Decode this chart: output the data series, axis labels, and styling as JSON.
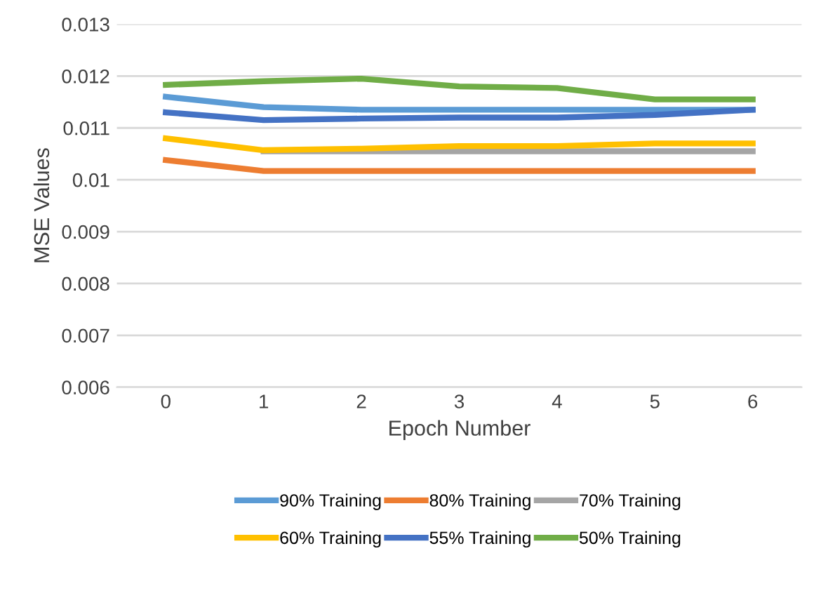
{
  "chart_data": {
    "type": "line",
    "xlabel": "Epoch Number",
    "ylabel": "MSE Values",
    "categories": [
      "0",
      "1",
      "2",
      "3",
      "4",
      "5",
      "6"
    ],
    "ylim": [
      0.006,
      0.013
    ],
    "yticks": [
      0.006,
      0.007,
      0.008,
      0.009,
      0.01,
      0.011,
      0.012,
      0.013
    ],
    "grid": "y",
    "legend": "bottom",
    "marker": "none",
    "line_style": "solid",
    "series": [
      {
        "name": "90% Training",
        "color": "#5b9bd5",
        "values": [
          0.0116,
          0.0114,
          0.01135,
          0.01135,
          0.01135,
          0.01135,
          0.01135
        ]
      },
      {
        "name": "80% Training",
        "color": "#ed7d31",
        "values": [
          0.01038,
          0.01017,
          0.01017,
          0.01017,
          0.01017,
          0.01017,
          0.01017
        ]
      },
      {
        "name": "70% Training",
        "color": "#a5a5a5",
        "values": [
          null,
          0.01055,
          0.01055,
          0.01055,
          0.01055,
          0.01055,
          0.01055
        ]
      },
      {
        "name": "60% Training",
        "color": "#ffc000",
        "values": [
          0.0108,
          0.01057,
          0.0106,
          0.01065,
          0.01065,
          0.0107,
          0.0107
        ]
      },
      {
        "name": "55% Training",
        "color": "#4472c4",
        "values": [
          0.0113,
          0.01115,
          0.01118,
          0.0112,
          0.0112,
          0.01125,
          0.01135
        ]
      },
      {
        "name": "50% Training",
        "color": "#70ad47",
        "values": [
          0.01183,
          0.0119,
          0.01195,
          0.0118,
          0.01177,
          0.01155,
          0.01155
        ]
      }
    ]
  }
}
